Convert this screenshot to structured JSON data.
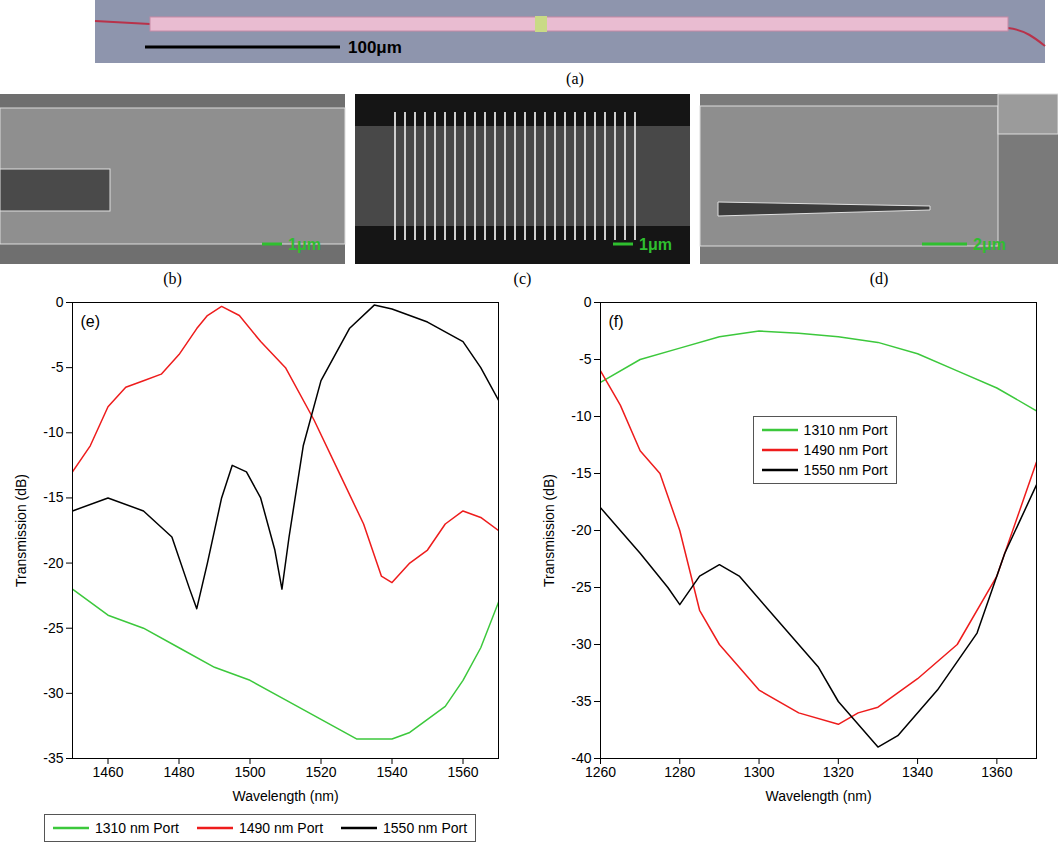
{
  "figure": {
    "panels": [
      {
        "label": "(a)",
        "scale_bar": "100μm"
      },
      {
        "label": "(b)",
        "scale_bar": "1μm"
      },
      {
        "label": "(c)",
        "scale_bar": "1μm"
      },
      {
        "label": "(d)",
        "scale_bar": "2μm"
      }
    ]
  },
  "chart_data": [
    {
      "type": "line",
      "panel_label": "(e)",
      "x_label": "Wavelength (nm)",
      "y_label": "Transmission (dB)",
      "xlim": [
        1450,
        1570
      ],
      "xticks": [
        1460,
        1480,
        1500,
        1520,
        1540,
        1560
      ],
      "ylim": [
        -35,
        0
      ],
      "yticks": [
        -35,
        -30,
        -25,
        -20,
        -15,
        -10,
        -5,
        0
      ],
      "grid": false,
      "legend": "bottom",
      "series": [
        {
          "name": "1310 nm Port",
          "color": "#3cc83c",
          "x": [
            1450,
            1460,
            1470,
            1480,
            1490,
            1500,
            1510,
            1520,
            1530,
            1540,
            1545,
            1550,
            1555,
            1560,
            1565,
            1570
          ],
          "values": [
            -22,
            -24,
            -25,
            -26.5,
            -28,
            -29,
            -30.5,
            -32,
            -33.5,
            -33.5,
            -33,
            -32,
            -31,
            -29,
            -26.5,
            -23
          ]
        },
        {
          "name": "1490 nm Port",
          "color": "#ee1c1c",
          "x": [
            1450,
            1455,
            1460,
            1465,
            1470,
            1475,
            1480,
            1485,
            1488,
            1492,
            1497,
            1503,
            1510,
            1518,
            1525,
            1532,
            1537,
            1540,
            1545,
            1550,
            1555,
            1560,
            1565,
            1570
          ],
          "values": [
            -13,
            -11,
            -8,
            -6.5,
            -6,
            -5.5,
            -4,
            -2,
            -1,
            -0.3,
            -1,
            -3,
            -5,
            -9,
            -13,
            -17,
            -21,
            -21.5,
            -20,
            -19,
            -17,
            -16,
            -16.5,
            -17.5
          ]
        },
        {
          "name": "1550 nm Port",
          "color": "#000000",
          "x": [
            1450,
            1460,
            1470,
            1478,
            1483,
            1485,
            1488,
            1492,
            1495,
            1499,
            1503,
            1507,
            1509,
            1511,
            1515,
            1520,
            1528,
            1535,
            1540,
            1550,
            1560,
            1565,
            1570
          ],
          "values": [
            -16,
            -15,
            -16,
            -18,
            -22,
            -23.5,
            -20,
            -15,
            -12.5,
            -13,
            -15,
            -19,
            -22,
            -18,
            -11,
            -6,
            -2,
            -0.2,
            -0.5,
            -1.5,
            -3,
            -5,
            -7.5
          ]
        }
      ]
    },
    {
      "type": "line",
      "panel_label": "(f)",
      "x_label": "Wavelength (nm)",
      "y_label": "Transmission (dB)",
      "xlim": [
        1260,
        1370
      ],
      "xticks": [
        1260,
        1280,
        1300,
        1320,
        1340,
        1360
      ],
      "ylim": [
        -40,
        0
      ],
      "yticks": [
        -40,
        -35,
        -30,
        -25,
        -20,
        -15,
        -10,
        -5,
        0
      ],
      "grid": false,
      "legend": "center",
      "series": [
        {
          "name": "1310 nm Port",
          "color": "#3cc83c",
          "x": [
            1260,
            1270,
            1280,
            1290,
            1300,
            1310,
            1320,
            1330,
            1340,
            1350,
            1360,
            1370
          ],
          "values": [
            -7,
            -5,
            -4,
            -3,
            -2.5,
            -2.7,
            -3,
            -3.5,
            -4.5,
            -6,
            -7.5,
            -9.5
          ]
        },
        {
          "name": "1490 nm Port",
          "color": "#ee1c1c",
          "x": [
            1260,
            1265,
            1270,
            1275,
            1280,
            1285,
            1290,
            1295,
            1300,
            1310,
            1320,
            1325,
            1330,
            1340,
            1350,
            1360,
            1370
          ],
          "values": [
            -6,
            -9,
            -13,
            -15,
            -20,
            -27,
            -30,
            -32,
            -34,
            -36,
            -37,
            -36,
            -35.5,
            -33,
            -30,
            -24,
            -14
          ]
        },
        {
          "name": "1550 nm Port",
          "color": "#000000",
          "x": [
            1260,
            1265,
            1270,
            1277,
            1280,
            1285,
            1290,
            1295,
            1305,
            1315,
            1320,
            1325,
            1330,
            1335,
            1345,
            1355,
            1362,
            1370
          ],
          "values": [
            -18,
            -20,
            -22,
            -25,
            -26.5,
            -24,
            -23,
            -24,
            -28,
            -32,
            -35,
            -37,
            -39,
            -38,
            -34,
            -29,
            -22,
            -16
          ]
        }
      ]
    }
  ]
}
